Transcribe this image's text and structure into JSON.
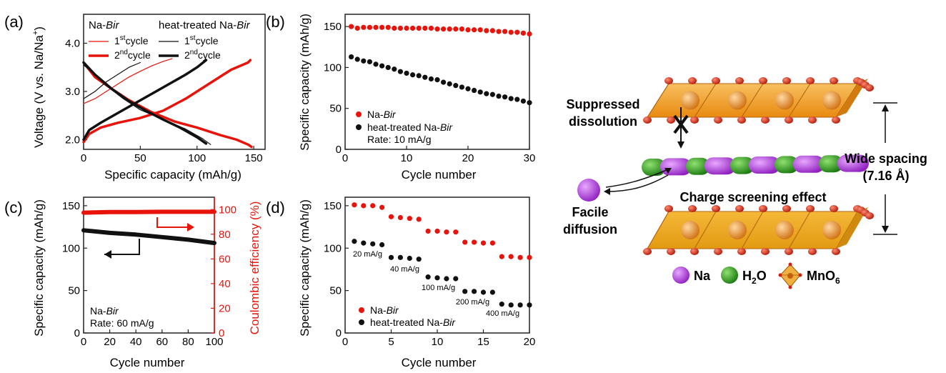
{
  "panels": {
    "a": {
      "letter": "(a)"
    },
    "b": {
      "letter": "(b)"
    },
    "c": {
      "letter": "(c)"
    },
    "d": {
      "letter": "(d)"
    }
  },
  "chart_data": [
    {
      "panel": "a",
      "type": "line",
      "xlabel": "Specific capacity (mAh/g)",
      "ylabel": "Voltage (V vs. Na/Na",
      "ylabel_sup": "+",
      "ylabel_close": ")",
      "xlim": [
        0,
        160
      ],
      "ylim": [
        1.8,
        4.6
      ],
      "xticks": [
        0,
        50,
        100,
        150
      ],
      "yticks": [
        2.0,
        3.0,
        4.0
      ],
      "ytick_labels": [
        "2.0",
        "3.0",
        "4.0"
      ],
      "legend": {
        "group1_prefix": "Na-",
        "group1_italic": "Bir",
        "group2_prefix": "heat-treated Na-",
        "group2_italic": "Bir",
        "first": "1",
        "first_sup": "st",
        "second": "2",
        "second_sup": "nd",
        "cycle": "cycle"
      },
      "series": [
        {
          "group": "Na-Bir",
          "cycle": 1,
          "color": "#e8140c",
          "width": 1.2,
          "x": [
            0,
            10,
            20,
            30,
            40,
            50,
            60,
            70,
            78
          ],
          "y": [
            2.75,
            2.85,
            3.0,
            3.15,
            3.3,
            3.42,
            3.53,
            3.62,
            3.68
          ]
        },
        {
          "group": "Na-Bir",
          "cycle": 2,
          "color": "#e8140c",
          "width": 3.5,
          "x": [
            0,
            5,
            15,
            30,
            50,
            70,
            90,
            110,
            130,
            145,
            147
          ],
          "y": [
            1.95,
            2.12,
            2.25,
            2.35,
            2.45,
            2.6,
            2.85,
            3.15,
            3.45,
            3.6,
            3.65
          ]
        },
        {
          "group": "Na-Bir",
          "cycle": 2,
          "color": "#e8140c",
          "width": 3.5,
          "x": [
            0,
            10,
            25,
            40,
            60,
            80,
            100,
            120,
            135,
            145,
            148
          ],
          "y": [
            3.6,
            3.3,
            3.05,
            2.82,
            2.57,
            2.38,
            2.25,
            2.1,
            2.0,
            1.9,
            1.85
          ]
        },
        {
          "group": "heat-treated Na-Bir",
          "cycle": 1,
          "color": "#111111",
          "width": 1.2,
          "x": [
            0,
            10,
            20,
            30,
            40,
            50
          ],
          "y": [
            2.85,
            3.0,
            3.2,
            3.35,
            3.5,
            3.6
          ]
        },
        {
          "group": "heat-treated Na-Bir",
          "cycle": 1,
          "color": "#111111",
          "width": 1.2,
          "x": [
            0,
            10,
            20,
            35,
            50,
            70,
            90,
            105,
            112
          ],
          "y": [
            3.55,
            3.35,
            3.12,
            2.85,
            2.62,
            2.42,
            2.22,
            2.02,
            1.9
          ]
        },
        {
          "group": "heat-treated Na-Bir",
          "cycle": 2,
          "color": "#111111",
          "width": 3.5,
          "x": [
            0,
            5,
            15,
            30,
            45,
            60,
            75,
            90,
            100,
            108
          ],
          "y": [
            2.0,
            2.2,
            2.35,
            2.55,
            2.75,
            2.95,
            3.15,
            3.35,
            3.5,
            3.65
          ]
        },
        {
          "group": "heat-treated Na-Bir",
          "cycle": 2,
          "color": "#111111",
          "width": 3.5,
          "x": [
            0,
            10,
            25,
            40,
            55,
            70,
            85,
            100,
            108
          ],
          "y": [
            3.6,
            3.35,
            3.05,
            2.8,
            2.6,
            2.42,
            2.25,
            2.05,
            1.92
          ]
        }
      ]
    },
    {
      "panel": "b",
      "type": "scatter",
      "xlabel": "Cycle number",
      "ylabel": "Specific capacity (mAh/g)",
      "xlim": [
        0,
        30
      ],
      "ylim": [
        0,
        165
      ],
      "xticks": [
        0,
        10,
        20,
        30
      ],
      "yticks": [
        0,
        50,
        100,
        150
      ],
      "legend_prefix": [
        "Na-",
        "heat-treated Na-"
      ],
      "legend_italic": "Bir",
      "rate_label": "Rate: 10 mA/g",
      "series": [
        {
          "name": "Na-Bir",
          "color": "#e8140c",
          "x": [
            1,
            2,
            3,
            4,
            5,
            6,
            7,
            8,
            9,
            10,
            11,
            12,
            13,
            14,
            15,
            16,
            17,
            18,
            19,
            20,
            21,
            22,
            23,
            24,
            25,
            26,
            27,
            28,
            29,
            30
          ],
          "y": [
            150,
            148,
            149,
            149,
            149,
            149,
            149,
            148,
            148,
            148,
            148,
            148,
            148,
            148,
            147,
            147,
            147,
            147,
            147,
            146,
            146,
            146,
            145,
            145,
            144,
            144,
            143,
            143,
            142,
            141
          ]
        },
        {
          "name": "heat-treated Na-Bir",
          "color": "#111111",
          "x": [
            1,
            2,
            3,
            4,
            5,
            6,
            7,
            8,
            9,
            10,
            11,
            12,
            13,
            14,
            15,
            16,
            17,
            18,
            19,
            20,
            21,
            22,
            23,
            24,
            25,
            26,
            27,
            28,
            29,
            30
          ],
          "y": [
            113,
            110,
            108,
            107,
            104,
            102,
            100,
            98,
            95,
            93,
            91,
            90,
            88,
            86,
            85,
            82,
            80,
            78,
            76,
            74,
            72,
            70,
            68,
            67,
            65,
            64,
            62,
            61,
            59,
            57
          ]
        }
      ]
    },
    {
      "panel": "c",
      "type": "line",
      "xlabel": "Cycle number",
      "ylabel": "Specific capacity (mAh/g)",
      "y2label": "Coulombic efficiency (%)",
      "xlim": [
        0,
        100
      ],
      "ylim": [
        0,
        160
      ],
      "y2lim": [
        0,
        110
      ],
      "xticks": [
        0,
        20,
        40,
        60,
        80,
        100
      ],
      "yticks": [
        0,
        50,
        100,
        150
      ],
      "y2ticks": [
        0,
        20,
        40,
        60,
        80,
        100
      ],
      "sample_prefix": "Na-",
      "sample_italic": "Bir",
      "rate_label": "Rate: 60 mA/g",
      "series": [
        {
          "name": "capacity",
          "axis": "left",
          "color": "#111111",
          "x": [
            0,
            20,
            40,
            60,
            80,
            100
          ],
          "y": [
            121,
            118,
            116,
            113,
            110,
            106
          ]
        },
        {
          "name": "efficiency",
          "axis": "right",
          "color": "#e8140c",
          "x": [
            0,
            20,
            40,
            60,
            80,
            100
          ],
          "y": [
            97.5,
            98,
            98,
            98.2,
            98.2,
            98.2
          ]
        }
      ]
    },
    {
      "panel": "d",
      "type": "scatter",
      "xlabel": "Cycle number",
      "ylabel": "Specific capacity (mAh/g)",
      "xlim": [
        0,
        20
      ],
      "ylim": [
        0,
        160
      ],
      "xticks": [
        0,
        5,
        10,
        15,
        20
      ],
      "yticks": [
        0,
        50,
        100,
        150
      ],
      "legend_prefix": [
        "Na-",
        "heat-treated Na-"
      ],
      "legend_italic": "Bir",
      "rate_labels": [
        "20 mA/g",
        "40 mA/g",
        "100 mA/g",
        "200 mA/g",
        "400 mA/g"
      ],
      "series": [
        {
          "name": "Na-Bir",
          "color": "#e8140c",
          "x": [
            1,
            2,
            3,
            4,
            5,
            6,
            7,
            8,
            9,
            10,
            11,
            12,
            13,
            14,
            15,
            16,
            17,
            18,
            19,
            20
          ],
          "y": [
            151,
            150,
            150,
            148,
            137,
            136,
            135,
            134,
            120,
            120,
            119,
            119,
            107,
            107,
            106,
            106,
            90,
            90,
            89,
            89
          ]
        },
        {
          "name": "heat-treated Na-Bir",
          "color": "#111111",
          "x": [
            1,
            2,
            3,
            4,
            5,
            6,
            7,
            8,
            9,
            10,
            11,
            12,
            13,
            14,
            15,
            16,
            17,
            18,
            19,
            20
          ],
          "y": [
            108,
            106,
            105,
            104,
            89,
            89,
            88,
            87,
            66,
            65,
            64,
            64,
            49,
            49,
            48,
            48,
            34,
            33,
            33,
            33
          ]
        }
      ]
    }
  ],
  "schematic": {
    "labels": {
      "suppressed_line1": "Suppressed",
      "suppressed_line2": "dissolution",
      "facile_line1": "Facile",
      "facile_line2": "diffusion",
      "charge_screening": "Charge screening effect",
      "wide_spacing": "Wide spacing",
      "spacing_value": "(7.16 Å)"
    },
    "legend": {
      "na": "Na",
      "h2o_prefix": "H",
      "h2o_sub": "2",
      "h2o_suffix": "O",
      "mno6_prefix": "MnO",
      "mno6_sub": "6"
    },
    "colors": {
      "na": "#b43be0",
      "h2o": "#2a9a1a",
      "mno6": "#f0a020",
      "oxygen": "#d42010"
    },
    "icons": [
      "cross-mark-icon",
      "arrow-icon"
    ]
  }
}
